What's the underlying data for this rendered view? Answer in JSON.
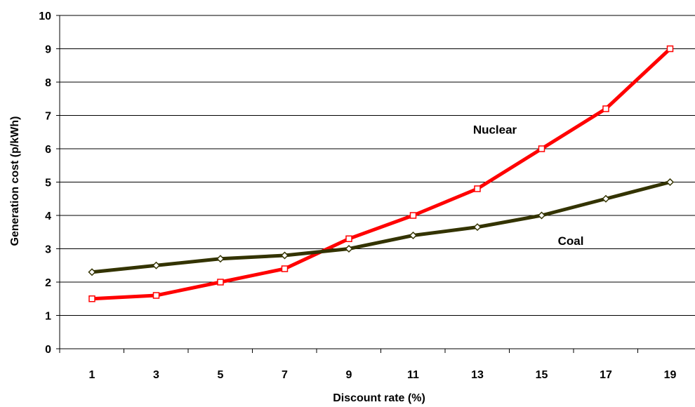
{
  "chart_data": {
    "type": "line",
    "title": "",
    "xlabel": "Discount rate (%)",
    "ylabel": "Generation cost (p/kWh)",
    "categories": [
      "1",
      "3",
      "5",
      "7",
      "9",
      "11",
      "13",
      "15",
      "17",
      "19"
    ],
    "ylim": [
      0,
      10
    ],
    "yticks": [
      0,
      1,
      2,
      3,
      4,
      5,
      6,
      7,
      8,
      9,
      10
    ],
    "grid": "horizontal",
    "legend": "none",
    "series": [
      {
        "name": "Nuclear",
        "color": "#ff0000",
        "marker": "square",
        "values": [
          1.5,
          1.6,
          2.0,
          2.4,
          3.3,
          4.0,
          4.8,
          6.0,
          7.2,
          9.0
        ]
      },
      {
        "name": "Coal",
        "color": "#333300",
        "marker": "diamond",
        "values": [
          2.3,
          2.5,
          2.7,
          2.8,
          3.0,
          3.4,
          3.65,
          4.0,
          4.5,
          5.0
        ]
      }
    ]
  }
}
